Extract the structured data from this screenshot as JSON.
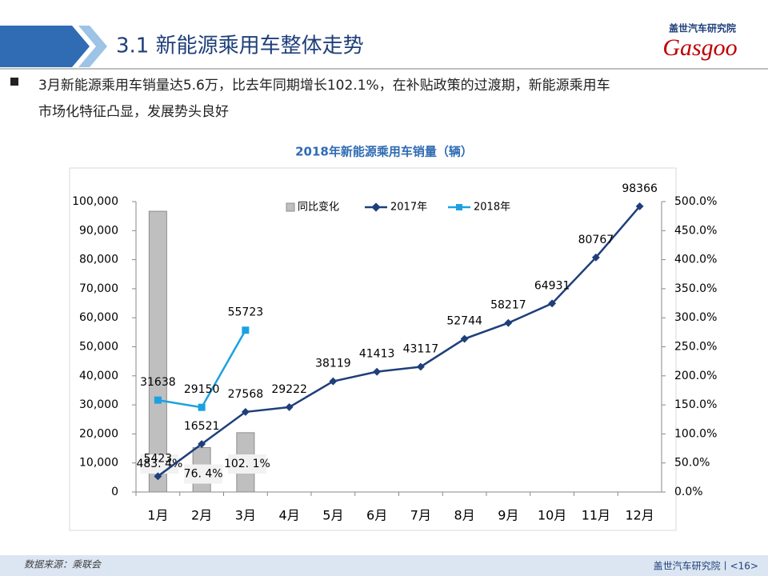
{
  "header": {
    "title": "3.1 新能源乘用车整体走势",
    "logo_text": "盖世汽车研究院",
    "logo_brand": "Gasgoo"
  },
  "bullet_lines": [
    "3月新能源乘用车销量达5.6万，比去年同期增长102.1%，在补贴政策的过渡期，新能源乘用车",
    "市场化特征凸显，发展势头良好"
  ],
  "footer": {
    "source": "数据来源：乘联会",
    "page": "盖世汽车研究院丨<16>"
  },
  "chart_data": {
    "type": "combo",
    "title": "2018年新能源乘用车销量（辆）",
    "categories": [
      "1月",
      "2月",
      "3月",
      "4月",
      "5月",
      "6月",
      "7月",
      "8月",
      "9月",
      "10月",
      "11月",
      "12月"
    ],
    "series": [
      {
        "name": "同比变化",
        "type": "bar",
        "axis": "y2",
        "color": "#bfbfbf",
        "values": [
          483.4,
          76.4,
          102.1,
          null,
          null,
          null,
          null,
          null,
          null,
          null,
          null,
          null
        ],
        "value_labels": [
          "483. 4%",
          "76. 4%",
          "102. 1%",
          null,
          null,
          null,
          null,
          null,
          null,
          null,
          null,
          null
        ]
      },
      {
        "name": "2017年",
        "type": "line",
        "color": "#1f3f7a",
        "values": [
          5423,
          16521,
          27568,
          29222,
          38119,
          41413,
          43117,
          52744,
          58217,
          64931,
          80767,
          98366
        ]
      },
      {
        "name": "2018年",
        "type": "line",
        "color": "#1ba1e2",
        "values": [
          31638,
          29150,
          55723,
          null,
          null,
          null,
          null,
          null,
          null,
          null,
          null,
          null
        ]
      }
    ],
    "ylim": [
      0,
      100000
    ],
    "yticks": [
      0,
      {
        "value": 10000,
        "label": "10,000"
      },
      {
        "value": 20000,
        "label": "20,000"
      },
      {
        "value": 30000,
        "label": "30,000"
      },
      {
        "value": 40000,
        "label": "40,000"
      },
      {
        "value": 50000,
        "label": "50,000"
      },
      {
        "value": 60000,
        "label": "60,000"
      },
      {
        "value": 70000,
        "label": "70,000"
      },
      {
        "value": 80000,
        "label": "80,000"
      },
      {
        "value": 90000,
        "label": "90,000"
      },
      {
        "value": 100000,
        "label": "100,000"
      }
    ],
    "y2lim": [
      0,
      500
    ],
    "y2ticks": [
      {
        "value": 0,
        "label": "0.0%"
      },
      {
        "value": 50,
        "label": "50.0%"
      },
      {
        "value": 100,
        "label": "100.0%"
      },
      {
        "value": 150,
        "label": "150.0%"
      },
      {
        "value": 200,
        "label": "200.0%"
      },
      {
        "value": 250,
        "label": "250.0%"
      },
      {
        "value": 300,
        "label": "300.0%"
      },
      {
        "value": 350,
        "label": "350.0%"
      },
      {
        "value": 400,
        "label": "400.0%"
      },
      {
        "value": 450,
        "label": "450.0%"
      },
      {
        "value": 500,
        "label": "500.0%"
      }
    ],
    "legend": "top"
  }
}
